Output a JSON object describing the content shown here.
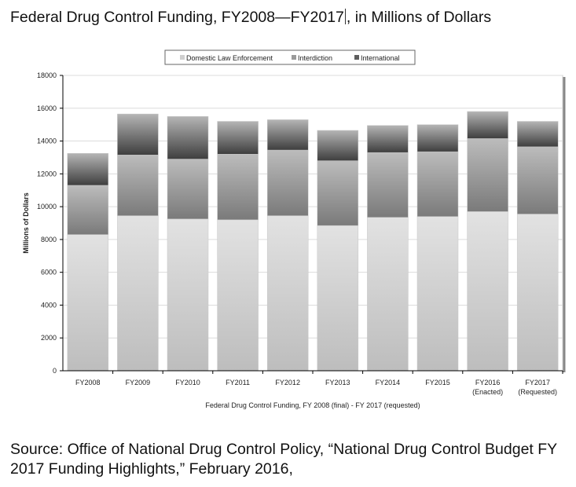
{
  "header": {
    "title_part1": "Federal Drug Control Funding, FY2008—FY2017",
    "title_part2": ", in Millions of Dollars"
  },
  "footer": {
    "source": "Source: Office of National Drug Control Policy, “National Drug Control Budget FY 2017 Funding Highlights,” February 2016,"
  },
  "chart_data": {
    "type": "bar",
    "stacked": true,
    "title": "",
    "xlabel": "Federal Drug Control Funding, FY 2008 (final) - FY 2017 (requested)",
    "ylabel": "Millions of Dollars",
    "ylim": [
      0,
      18000
    ],
    "yticks": [
      0,
      2000,
      4000,
      6000,
      8000,
      10000,
      12000,
      14000,
      16000,
      18000
    ],
    "grid": true,
    "legend_position": "top",
    "categories": [
      "FY2008",
      "FY2009",
      "FY2010",
      "FY2011",
      "FY2012",
      "FY2013",
      "FY2014",
      "FY2015",
      "FY2016\n(Enacted)",
      "FY2017\n(Requested)"
    ],
    "series": [
      {
        "name": "Domestic Law Enforcement",
        "color": "#d6d6d6",
        "values": [
          8300,
          9450,
          9250,
          9200,
          9450,
          8850,
          9350,
          9400,
          9700,
          9550
        ]
      },
      {
        "name": "Interdiction",
        "color": "#9a9a9a",
        "values": [
          3000,
          3700,
          3650,
          4000,
          4000,
          3950,
          3950,
          3950,
          4450,
          4100
        ]
      },
      {
        "name": "International",
        "color": "#555555",
        "values": [
          1950,
          2500,
          2600,
          2000,
          1850,
          1850,
          1650,
          1650,
          1650,
          1550
        ]
      }
    ]
  }
}
